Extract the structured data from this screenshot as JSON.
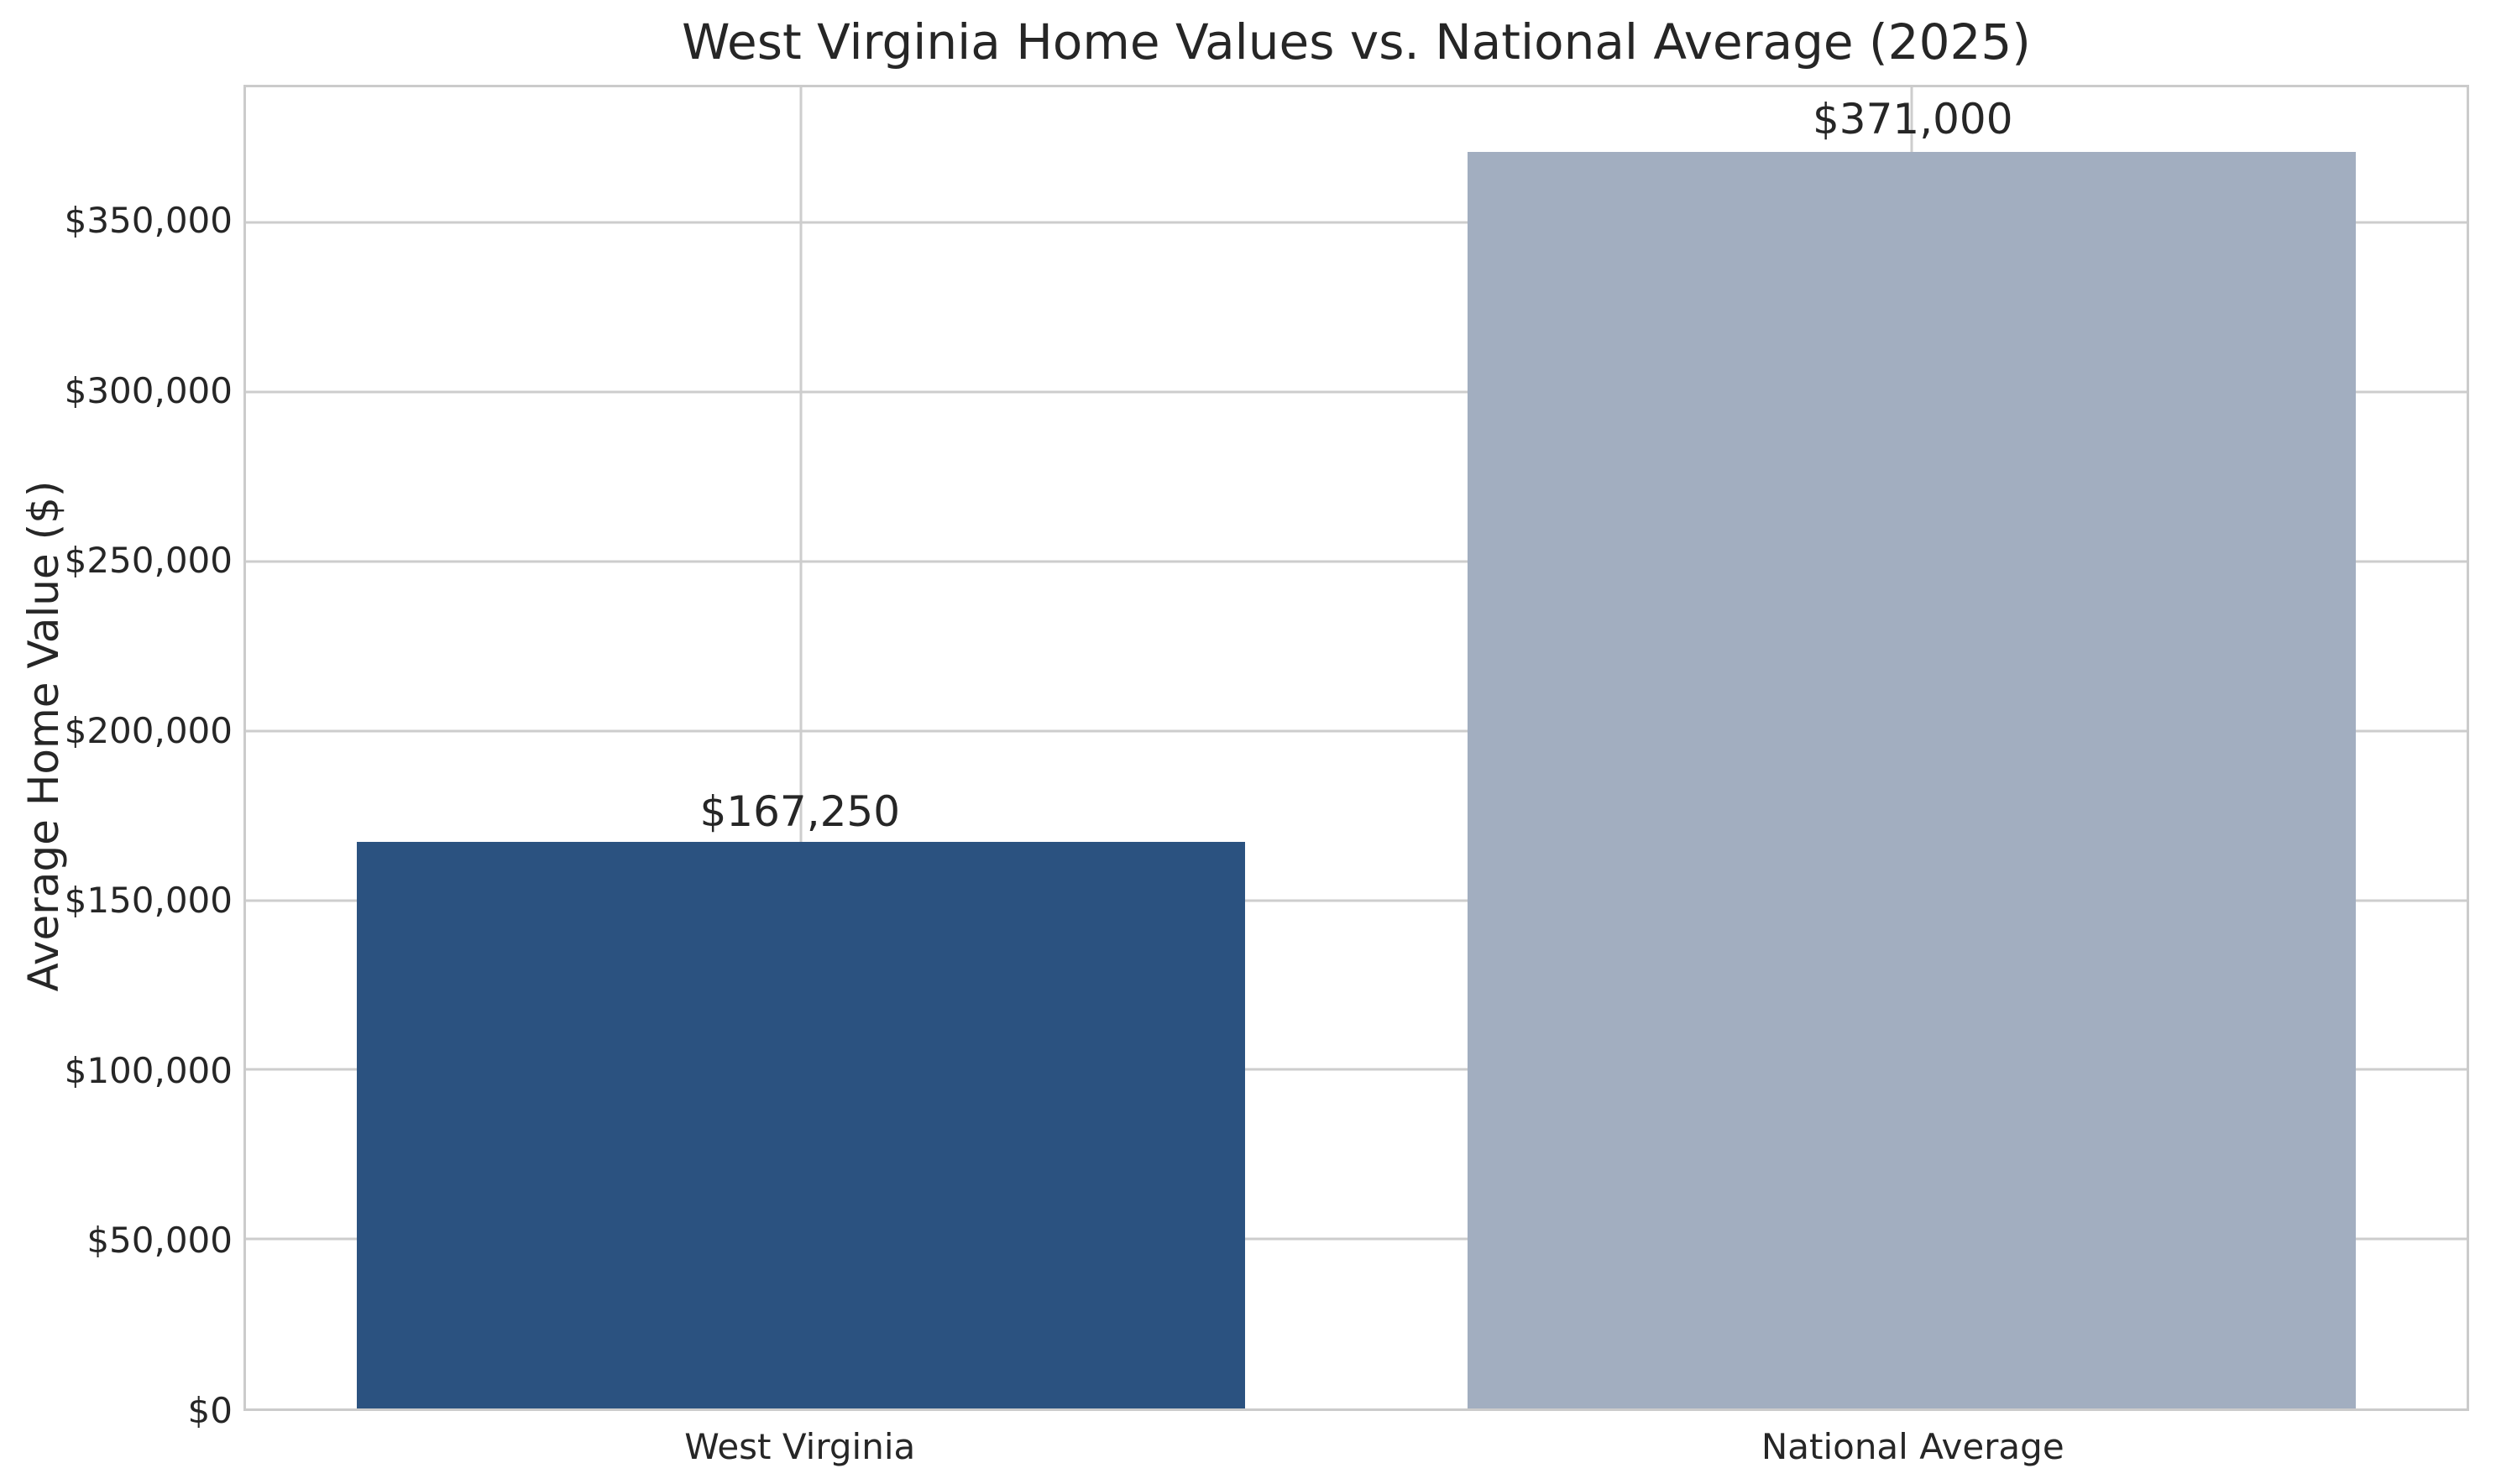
{
  "chart_data": {
    "type": "bar",
    "title": "West Virginia Home Values vs. National Average (2025)",
    "ylabel": "Average Home Value ($)",
    "xlabel": "",
    "categories": [
      "West Virginia",
      "National Average"
    ],
    "values": [
      167250,
      371000
    ],
    "value_labels": [
      "$167,250",
      "$371,000"
    ],
    "bar_colors": [
      "#2b5280",
      "#a2aec0"
    ],
    "ylim": [
      0,
      390000
    ],
    "yticks": [
      0,
      50000,
      100000,
      150000,
      200000,
      250000,
      300000,
      350000
    ],
    "ytick_labels": [
      "$0",
      "$50,000",
      "$100,000",
      "$150,000",
      "$200,000",
      "$250,000",
      "$300,000",
      "$350,000"
    ],
    "grid": true,
    "grid_axes": "both",
    "grid_color": "#cdcdcd",
    "spine_color": "#cbcbcb",
    "text_color": "#262626",
    "background_color": "#ffffff",
    "legend": false,
    "bar_width_fraction": 0.8
  }
}
